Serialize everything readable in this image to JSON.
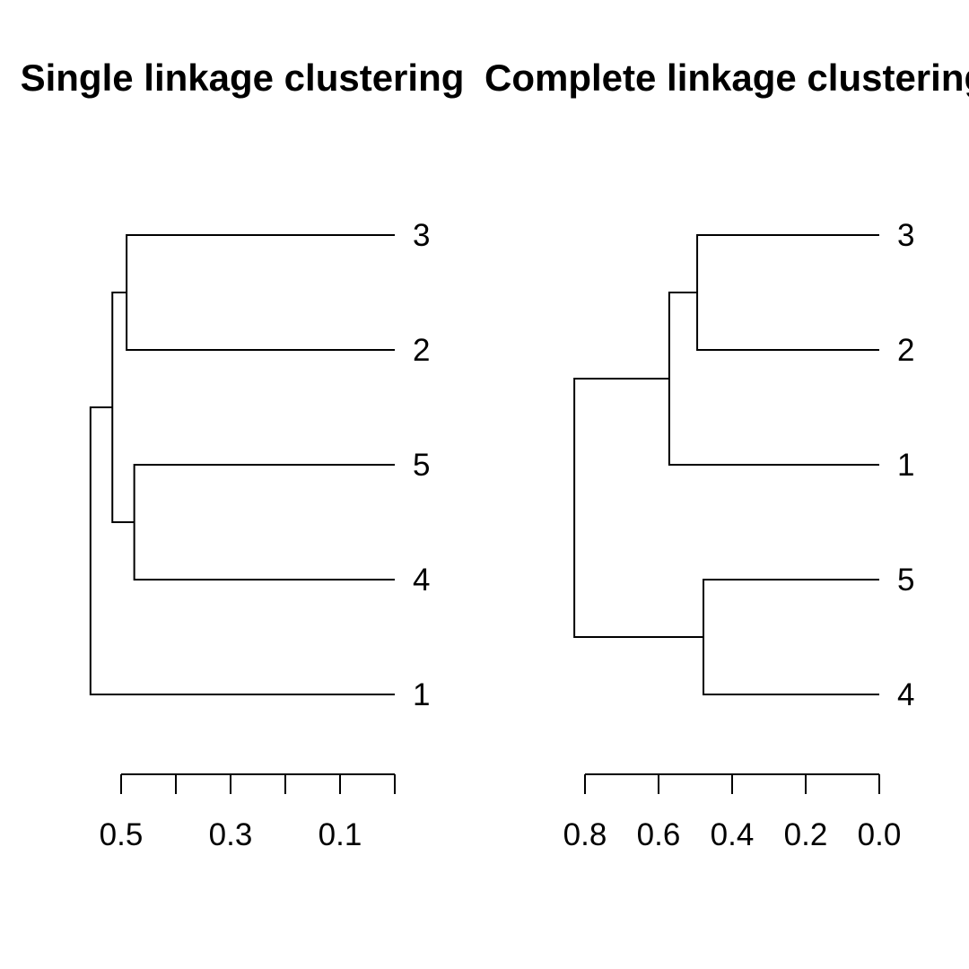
{
  "chart_data": [
    {
      "type": "dendrogram",
      "title": "Single linkage clustering",
      "orientation": "horizontal",
      "leaf_order": [
        "3",
        "2",
        "5",
        "4",
        "1"
      ],
      "merges": [
        {
          "id": "a",
          "children": [
            "3",
            "2"
          ],
          "height": 0.49
        },
        {
          "id": "b",
          "children": [
            "5",
            "4"
          ],
          "height": 0.476
        },
        {
          "id": "c",
          "children": [
            "a",
            "b"
          ],
          "height": 0.516
        },
        {
          "id": "d",
          "children": [
            "c",
            "1"
          ],
          "height": 0.556
        }
      ],
      "axis": {
        "ticks": [
          0.5,
          0.4,
          0.3,
          0.2,
          0.1,
          0.0
        ],
        "tick_labels": [
          "0.5",
          "",
          "0.3",
          "",
          "0.1",
          ""
        ],
        "range": [
          0,
          0.5
        ]
      }
    },
    {
      "type": "dendrogram",
      "title": "Complete linkage clustering",
      "orientation": "horizontal",
      "leaf_order": [
        "3",
        "2",
        "1",
        "5",
        "4"
      ],
      "merges": [
        {
          "id": "a",
          "children": [
            "3",
            "2"
          ],
          "height": 0.495
        },
        {
          "id": "b",
          "children": [
            "a",
            "1"
          ],
          "height": 0.571
        },
        {
          "id": "c",
          "children": [
            "5",
            "4"
          ],
          "height": 0.478
        },
        {
          "id": "d",
          "children": [
            "b",
            "c"
          ],
          "height": 0.829
        }
      ],
      "axis": {
        "ticks": [
          0.8,
          0.6,
          0.4,
          0.2,
          0.0
        ],
        "tick_labels": [
          "0.8",
          "0.6",
          "0.4",
          "0.2",
          "0.0"
        ],
        "range": [
          0,
          0.8
        ]
      }
    }
  ]
}
